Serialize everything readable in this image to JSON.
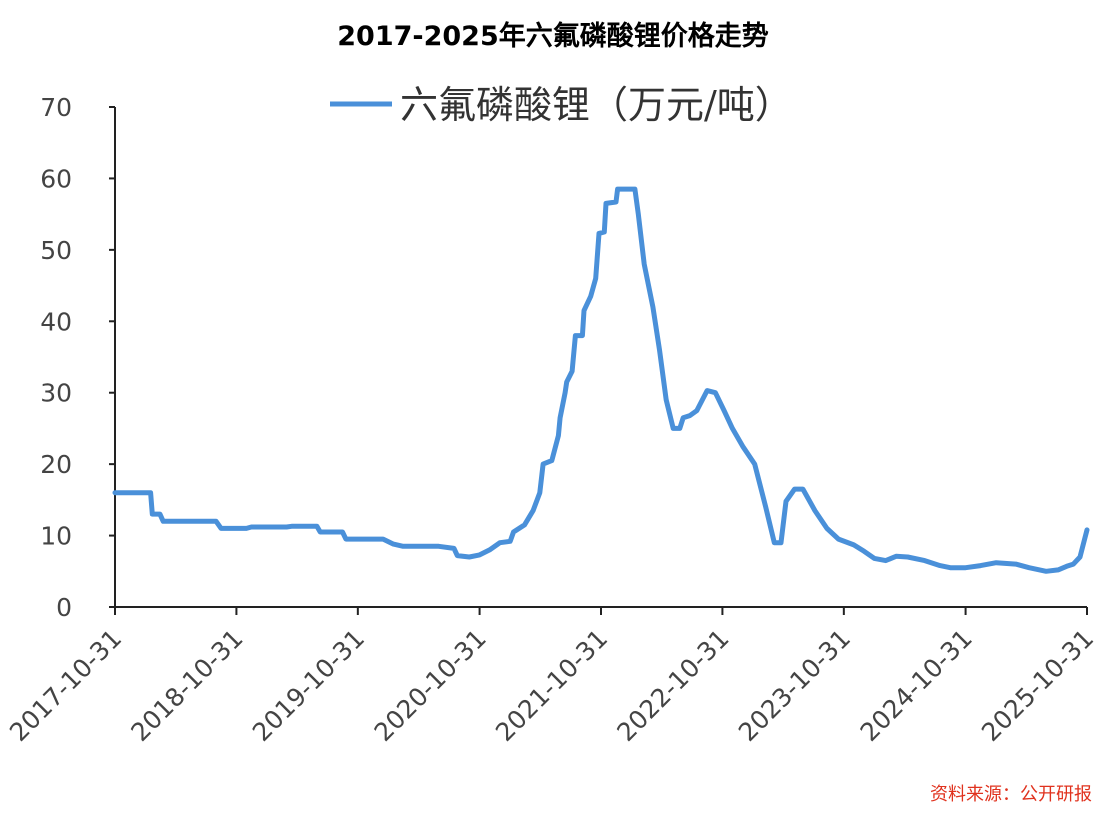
{
  "title": "2017-2025年六氟磷酸锂价格走势",
  "source_note": "资料来源：公开研报",
  "colors": {
    "line": "#4a90d9",
    "axis": "#222222",
    "source": "#e0321e"
  },
  "chart_data": {
    "type": "line",
    "title": "2017-2025年六氟磷酸锂价格走势",
    "xlabel": "",
    "ylabel": "",
    "x_ticks": [
      "2017-10-31",
      "2018-10-31",
      "2019-10-31",
      "2020-10-31",
      "2021-10-31",
      "2022-10-31",
      "2023-10-31",
      "2024-10-31",
      "2025-10-31"
    ],
    "y_ticks": [
      0,
      10,
      20,
      30,
      40,
      50,
      60,
      70
    ],
    "xlim": [
      "2017-10-31",
      "2025-10-31"
    ],
    "ylim": [
      0,
      70
    ],
    "grid": false,
    "legend_position": "top",
    "series": [
      {
        "name": "六氟磷酸锂（万元/吨）",
        "color": "#4a90d9",
        "points": [
          [
            "2017-10-31",
            16.0
          ],
          [
            "2018-02-15",
            16.0
          ],
          [
            "2018-02-20",
            13.0
          ],
          [
            "2018-03-15",
            13.0
          ],
          [
            "2018-03-25",
            12.0
          ],
          [
            "2018-08-31",
            12.0
          ],
          [
            "2018-09-15",
            11.0
          ],
          [
            "2018-11-30",
            11.0
          ],
          [
            "2018-12-15",
            11.2
          ],
          [
            "2019-03-31",
            11.2
          ],
          [
            "2019-04-15",
            11.3
          ],
          [
            "2019-06-30",
            11.3
          ],
          [
            "2019-07-10",
            10.5
          ],
          [
            "2019-09-15",
            10.5
          ],
          [
            "2019-09-25",
            9.5
          ],
          [
            "2020-01-15",
            9.5
          ],
          [
            "2020-02-15",
            8.8
          ],
          [
            "2020-03-15",
            8.5
          ],
          [
            "2020-06-30",
            8.5
          ],
          [
            "2020-08-15",
            8.2
          ],
          [
            "2020-08-25",
            7.2
          ],
          [
            "2020-09-30",
            7.0
          ],
          [
            "2020-10-31",
            7.3
          ],
          [
            "2020-11-30",
            8.0
          ],
          [
            "2020-12-31",
            9.0
          ],
          [
            "2021-01-31",
            9.2
          ],
          [
            "2021-02-10",
            10.5
          ],
          [
            "2021-03-15",
            11.5
          ],
          [
            "2021-04-10",
            13.5
          ],
          [
            "2021-04-30",
            16.0
          ],
          [
            "2021-05-10",
            20.0
          ],
          [
            "2021-06-05",
            20.5
          ],
          [
            "2021-06-25",
            24.0
          ],
          [
            "2021-06-30",
            26.5
          ],
          [
            "2021-07-15",
            30.0
          ],
          [
            "2021-07-20",
            31.5
          ],
          [
            "2021-08-05",
            33.0
          ],
          [
            "2021-08-15",
            38.0
          ],
          [
            "2021-09-05",
            38.0
          ],
          [
            "2021-09-10",
            41.5
          ],
          [
            "2021-09-30",
            43.5
          ],
          [
            "2021-10-15",
            46.0
          ],
          [
            "2021-10-25",
            52.3
          ],
          [
            "2021-11-10",
            52.5
          ],
          [
            "2021-11-15",
            56.5
          ],
          [
            "2021-12-15",
            56.7
          ],
          [
            "2021-12-20",
            58.5
          ],
          [
            "2022-02-10",
            58.5
          ],
          [
            "2022-02-20",
            55.0
          ],
          [
            "2022-03-10",
            48.0
          ],
          [
            "2022-04-05",
            42.0
          ],
          [
            "2022-04-25",
            36.0
          ],
          [
            "2022-05-15",
            29.0
          ],
          [
            "2022-06-05",
            25.0
          ],
          [
            "2022-06-25",
            25.0
          ],
          [
            "2022-07-05",
            26.5
          ],
          [
            "2022-07-25",
            26.8
          ],
          [
            "2022-08-15",
            27.5
          ],
          [
            "2022-09-15",
            30.3
          ],
          [
            "2022-10-10",
            30.0
          ],
          [
            "2022-11-05",
            27.5
          ],
          [
            "2022-11-30",
            25.0
          ],
          [
            "2022-12-31",
            22.5
          ],
          [
            "2023-02-05",
            20.0
          ],
          [
            "2023-03-10",
            14.0
          ],
          [
            "2023-04-05",
            9.0
          ],
          [
            "2023-04-25",
            9.0
          ],
          [
            "2023-05-10",
            14.8
          ],
          [
            "2023-06-05",
            16.5
          ],
          [
            "2023-06-30",
            16.5
          ],
          [
            "2023-08-05",
            13.5
          ],
          [
            "2023-09-10",
            11.0
          ],
          [
            "2023-10-15",
            9.5
          ],
          [
            "2023-11-30",
            8.7
          ],
          [
            "2023-12-31",
            7.8
          ],
          [
            "2024-01-31",
            6.8
          ],
          [
            "2024-03-05",
            6.5
          ],
          [
            "2024-04-05",
            7.1
          ],
          [
            "2024-05-10",
            7.0
          ],
          [
            "2024-06-30",
            6.5
          ],
          [
            "2024-08-15",
            5.8
          ],
          [
            "2024-09-15",
            5.5
          ],
          [
            "2024-10-31",
            5.5
          ],
          [
            "2024-12-15",
            5.8
          ],
          [
            "2025-01-31",
            6.2
          ],
          [
            "2025-03-31",
            6.0
          ],
          [
            "2025-05-10",
            5.5
          ],
          [
            "2025-06-30",
            5.0
          ],
          [
            "2025-08-05",
            5.2
          ],
          [
            "2025-08-31",
            5.7
          ],
          [
            "2025-09-20",
            6.0
          ],
          [
            "2025-10-10",
            7.0
          ],
          [
            "2025-10-31",
            10.8
          ]
        ]
      }
    ]
  }
}
